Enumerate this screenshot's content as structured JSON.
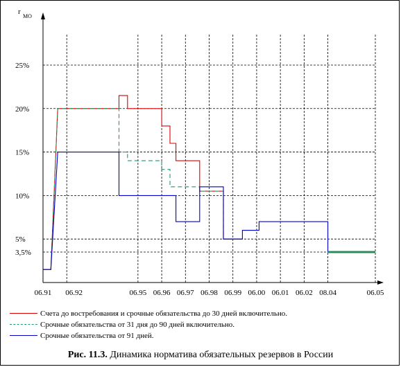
{
  "chart_data": {
    "type": "line",
    "title": "",
    "ylabel": "r",
    "ylabel_sub": "МО",
    "y_ticks": [
      {
        "label": "25%",
        "value": 25
      },
      {
        "label": "20%",
        "value": 20
      },
      {
        "label": "15%",
        "value": 15
      },
      {
        "label": "10%",
        "value": 10
      },
      {
        "label": "5%",
        "value": 5
      },
      {
        "label": "3,5%",
        "value": 3.5
      }
    ],
    "ylim": [
      0,
      28.5
    ],
    "xlim": [
      0,
      14
    ],
    "x_ticks": [
      {
        "label": "06.91",
        "x": 0
      },
      {
        "label": "06.92",
        "x": 1
      },
      {
        "label": "06.95",
        "x": 4
      },
      {
        "label": "06.96",
        "x": 5
      },
      {
        "label": "06.97",
        "x": 6
      },
      {
        "label": "06.98",
        "x": 7
      },
      {
        "label": "06.99",
        "x": 8
      },
      {
        "label": "06.00",
        "x": 9
      },
      {
        "label": "06.01",
        "x": 10
      },
      {
        "label": "06.02",
        "x": 11
      },
      {
        "label": "08.04",
        "x": 12
      },
      {
        "label": "06.05",
        "x": 14
      }
    ],
    "grid": true,
    "series": [
      {
        "name": "Счета до востребования и срочные обязательства до 30 дней включительно.",
        "color": "#dd0000",
        "dash": "",
        "points": [
          [
            0,
            1.5
          ],
          [
            0.33,
            1.5
          ],
          [
            0.62,
            20
          ],
          [
            3.2,
            20
          ],
          [
            3.2,
            21.5
          ],
          [
            3.56,
            21.5
          ],
          [
            3.56,
            20
          ],
          [
            5.0,
            20
          ],
          [
            5.0,
            18
          ],
          [
            5.35,
            18
          ],
          [
            5.35,
            16
          ],
          [
            5.6,
            16
          ],
          [
            5.6,
            14
          ],
          [
            6.6,
            14
          ],
          [
            6.6,
            10.5
          ],
          [
            7.6,
            10.5
          ],
          [
            7.6,
            5
          ],
          [
            8.4,
            5
          ]
        ]
      },
      {
        "name": "Срочные обязательства от 31 дня до 90 дней  включительно.",
        "color": "#229966",
        "dash": "6,4",
        "points": [
          [
            0,
            1.5
          ],
          [
            0.33,
            1.5
          ],
          [
            0.62,
            20
          ],
          [
            3.2,
            20
          ],
          [
            3.2,
            15
          ],
          [
            3.56,
            15
          ],
          [
            3.56,
            14
          ],
          [
            5.0,
            14
          ],
          [
            5.0,
            13
          ],
          [
            5.35,
            13
          ],
          [
            5.35,
            11
          ],
          [
            6.6,
            11
          ],
          [
            6.6,
            10.5
          ],
          [
            7.6,
            10.5
          ],
          [
            7.6,
            5
          ],
          [
            8.4,
            5
          ]
        ]
      },
      {
        "name": "Срочные обязательства от 91 дней.",
        "color": "#0000cc",
        "dash": "",
        "points": [
          [
            0,
            1.5
          ],
          [
            0.33,
            1.5
          ],
          [
            0.62,
            15
          ],
          [
            3.2,
            15
          ],
          [
            3.2,
            10
          ],
          [
            5.6,
            10
          ],
          [
            5.6,
            7
          ],
          [
            6.6,
            7
          ],
          [
            6.6,
            11
          ],
          [
            7.6,
            11
          ],
          [
            7.6,
            5
          ],
          [
            8.4,
            5
          ],
          [
            8.4,
            6
          ],
          [
            9.1,
            6
          ],
          [
            9.1,
            7
          ],
          [
            12.0,
            7
          ],
          [
            12.0,
            3.5
          ],
          [
            14,
            3.5
          ]
        ]
      }
    ],
    "extra_series": {
      "color": "#2e8b57",
      "points": [
        [
          12.0,
          3.5
        ],
        [
          14,
          3.5
        ]
      ]
    }
  },
  "caption": {
    "bold": "Рис. 11.3.",
    "text": " Динамика норматива обязательных резервов в России"
  }
}
